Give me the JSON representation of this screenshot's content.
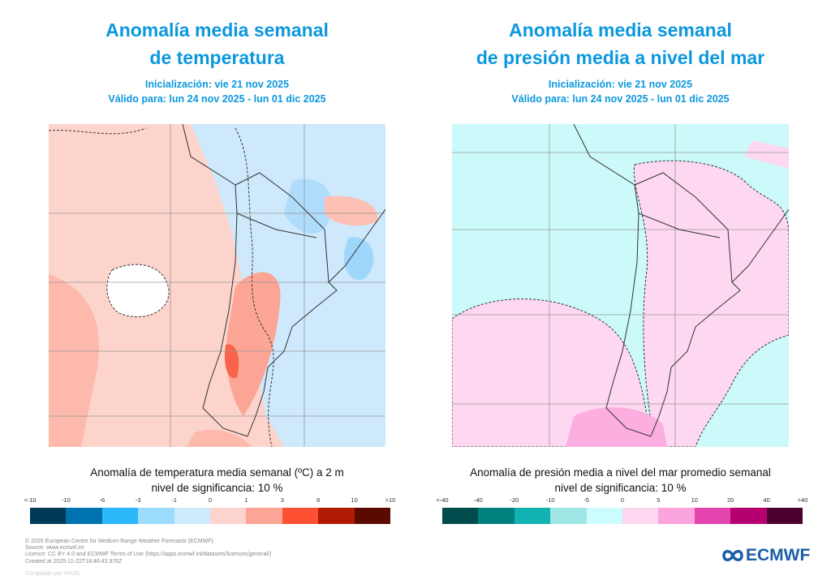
{
  "left": {
    "title_line1": "Anomalía media semanal",
    "title_line2": "de temperatura",
    "init": "Inicialización: vie 21 nov 2025",
    "valid": "Válido para: lun 24 nov 2025 - lun 01 dic 2025",
    "caption": "Anomalía de temperatura media semanal (ºC) a 2 m",
    "significance": "nivel de significancia: 10 %",
    "ticks": [
      "<-10",
      "-10",
      "-6",
      "-3",
      "-1",
      "0",
      "1",
      "3",
      "6",
      "10",
      ">10"
    ],
    "colors": [
      "#003a57",
      "#0072ae",
      "#2cb9fb",
      "#9bdbfd",
      "#cdebfc",
      "#fdd3cd",
      "#fca594",
      "#fe5133",
      "#b01a03",
      "#5a0b00"
    ]
  },
  "right": {
    "title_line1": "Anomalía media semanal",
    "title_line2": "de presión media a nivel del mar",
    "init": "Inicialización: vie 21 nov 2025",
    "valid": "Válido para: lun 24 nov 2025 - lun 01 dic 2025",
    "caption": "Anomalía de presión media a nivel del mar promedio semanal",
    "significance": "nivel de significancia: 10 %",
    "ticks": [
      "<-40",
      "-40",
      "-20",
      "-10",
      "-5",
      "0",
      "5",
      "10",
      "20",
      "40",
      ">40"
    ],
    "colors": [
      "#004c4c",
      "#007f7f",
      "#12b2b2",
      "#a0e6e6",
      "#ccfcfc",
      "#fdd6ef",
      "#fca4de",
      "#e444ad",
      "#b5006f",
      "#4c0030"
    ]
  },
  "footer": {
    "copyright": "© 2025 European Centre for Medium-Range Weather Forecasts (ECMWF)",
    "source": "Source: www.ecmwf.int",
    "licence": "Licence: CC BY 4.0 and ECMWF Terms of Use (https://apps.ecmwf.int/datasets/licences/general/)",
    "created": "Created at 2025-11-22T18:46:43.976Z",
    "compiled": "Compilado por VVUG"
  },
  "logo": {
    "text": "ECMWF",
    "color": "#1a5da8"
  }
}
